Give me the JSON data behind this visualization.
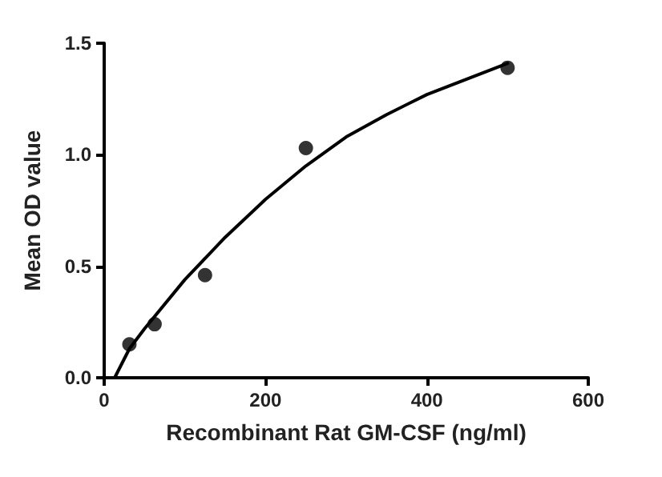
{
  "chart_data": {
    "type": "scatter",
    "xlabel": "Recombinant Rat GM-CSF (ng/ml)",
    "ylabel": "Mean OD value",
    "xlim": [
      0,
      600
    ],
    "xticks": [
      0,
      200,
      400,
      600
    ],
    "ylim": [
      0,
      1.5
    ],
    "yticks": [
      {
        "value": 0,
        "label": "0.0"
      },
      {
        "value": 0.5,
        "label": "0.5"
      },
      {
        "value": 1,
        "label": "1.0"
      },
      {
        "value": 1.5,
        "label": "1.5"
      }
    ],
    "grid": false,
    "series": [
      {
        "color": "#000000",
        "marker": "circle",
        "x": [
          31.25,
          62.5,
          125,
          250,
          500
        ],
        "values": [
          0.15,
          0.24,
          0.46,
          1.03,
          1.39
        ]
      },
      {
        "type": "line",
        "color": "#000000",
        "marker": "none",
        "line_style": "solid",
        "x": [
          13,
          31.25,
          50,
          100,
          150,
          200,
          250,
          300,
          350,
          400,
          450,
          500
        ],
        "values": [
          0,
          0.13,
          0.22,
          0.44,
          0.63,
          0.8,
          0.95,
          1.08,
          1.18,
          1.27,
          1.34,
          1.41
        ]
      }
    ]
  }
}
